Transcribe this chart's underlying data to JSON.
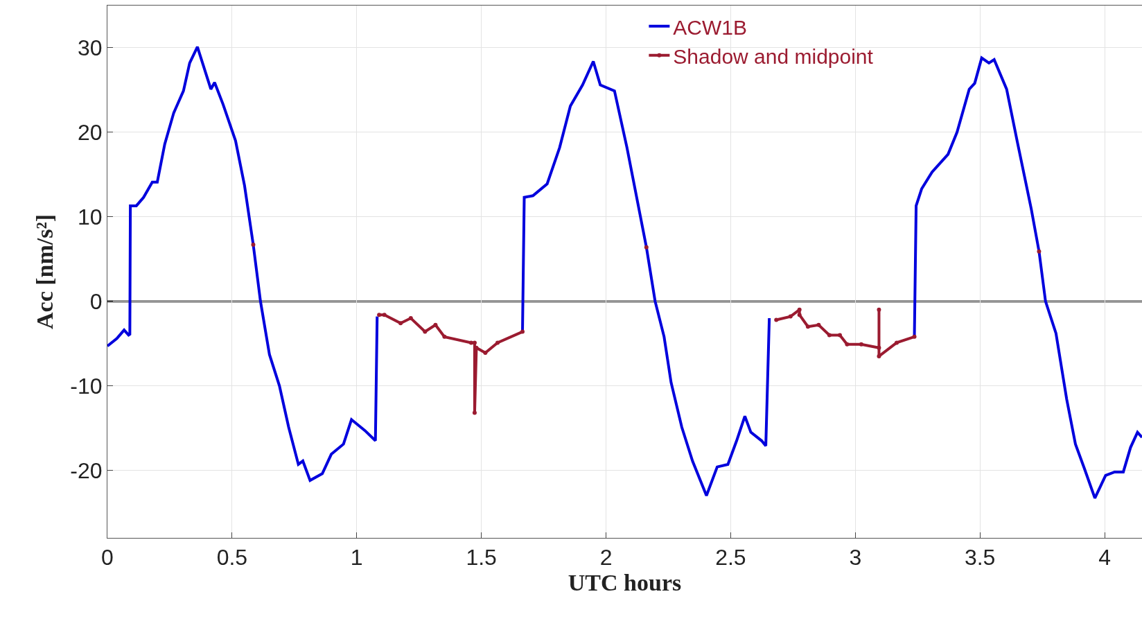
{
  "chart_data": {
    "type": "line",
    "xlabel": "UTC hours",
    "ylabel": "Acc [nm/s²]",
    "xlim": [
      0,
      4.15
    ],
    "ylim": [
      -28,
      35
    ],
    "xticks": [
      0,
      0.5,
      1,
      1.5,
      2,
      2.5,
      3,
      3.5,
      4
    ],
    "yticks": [
      -20,
      -10,
      0,
      10,
      20,
      30
    ],
    "grid": true,
    "legend": "top",
    "line_style": "solid",
    "ref_lines": [
      {
        "axis": "y",
        "value": 0,
        "color": "#404040"
      }
    ],
    "series": [
      {
        "name": "ACW1B",
        "color": "#0000dd",
        "marker": "none",
        "x": [
          0,
          0.038,
          0.067,
          0.085,
          0.09,
          0.092,
          0.116,
          0.145,
          0.18,
          0.2,
          0.23,
          0.266,
          0.305,
          0.33,
          0.361,
          0.415,
          0.43,
          0.464,
          0.514,
          0.55,
          0.585,
          0.614,
          0.65,
          0.69,
          0.727,
          0.766,
          0.784,
          0.813,
          0.862,
          0.898,
          0.947,
          0.979,
          1.033,
          1.075,
          1.082,
          null,
          1.665,
          1.672,
          1.707,
          1.764,
          1.814,
          1.857,
          1.906,
          1.949,
          1.977,
          2.034,
          2.084,
          2.162,
          2.197,
          2.233,
          2.261,
          2.304,
          2.347,
          2.403,
          2.446,
          2.489,
          2.524,
          2.557,
          2.581,
          2.624,
          2.641,
          2.655,
          null,
          3.237,
          3.244,
          3.266,
          3.308,
          3.372,
          3.408,
          3.457,
          3.479,
          3.507,
          3.536,
          3.557,
          3.607,
          3.649,
          3.706,
          3.737,
          3.763,
          3.805,
          3.848,
          3.883,
          3.919,
          3.961,
          4.004,
          4.04,
          4.075,
          4.104,
          4.132,
          4.15
        ],
        "values": [
          -5.3,
          -4.4,
          -3.4,
          -4.0,
          -3.9,
          11.3,
          11.3,
          12.3,
          14.1,
          14.1,
          18.6,
          22.3,
          24.9,
          28.2,
          30.1,
          25.1,
          25.9,
          23.3,
          19.0,
          13.7,
          6.7,
          0,
          -6.3,
          -10.0,
          -14.9,
          -19.3,
          -18.9,
          -21.2,
          -20.4,
          -18.1,
          -16.9,
          -14.0,
          -15.3,
          -16.5,
          -1.8,
          null,
          -3.6,
          12.3,
          12.5,
          13.9,
          18.2,
          23.1,
          25.6,
          28.4,
          25.6,
          24.9,
          18.2,
          6.4,
          0,
          -4.2,
          -9.6,
          -14.9,
          -18.9,
          -23.0,
          -19.6,
          -19.3,
          -16.5,
          -13.6,
          -15.5,
          -16.5,
          -17.1,
          -2.0,
          null,
          -4.2,
          11.3,
          13.3,
          15.3,
          17.4,
          20.0,
          25.1,
          25.8,
          28.8,
          28.2,
          28.6,
          25.1,
          19.0,
          10.9,
          5.9,
          0,
          -3.8,
          -11.6,
          -16.9,
          -19.8,
          -23.3,
          -20.6,
          -20.2,
          -20.2,
          -17.3,
          -15.5,
          -16.1
        ]
      },
      {
        "name": "Shadow and midpoint",
        "color": "#9b1b30",
        "marker": "circle",
        "x": [
          0.585,
          null,
          1.09,
          1.111,
          1.176,
          1.217,
          1.274,
          1.316,
          1.352,
          1.459,
          1.473,
          1.473,
          1.48,
          1.516,
          1.565,
          1.665,
          null,
          2.162,
          null,
          2.683,
          2.74,
          2.776,
          2.776,
          2.81,
          2.853,
          2.896,
          2.938,
          2.967,
          3.024,
          3.095,
          3.095,
          3.095,
          3.166,
          3.237,
          null,
          3.737
        ],
        "values": [
          6.7,
          null,
          -1.6,
          -1.6,
          -2.6,
          -2.0,
          -3.6,
          -2.8,
          -4.2,
          -4.9,
          -4.9,
          -13.2,
          -5.5,
          -6.1,
          -4.9,
          -3.6,
          null,
          6.4,
          null,
          -2.2,
          -1.8,
          -1.0,
          -1.6,
          -3.0,
          -2.8,
          -4.0,
          -4.0,
          -5.1,
          -5.1,
          -5.5,
          -1.0,
          -6.5,
          -4.9,
          -4.2,
          null,
          5.9
        ]
      }
    ]
  }
}
